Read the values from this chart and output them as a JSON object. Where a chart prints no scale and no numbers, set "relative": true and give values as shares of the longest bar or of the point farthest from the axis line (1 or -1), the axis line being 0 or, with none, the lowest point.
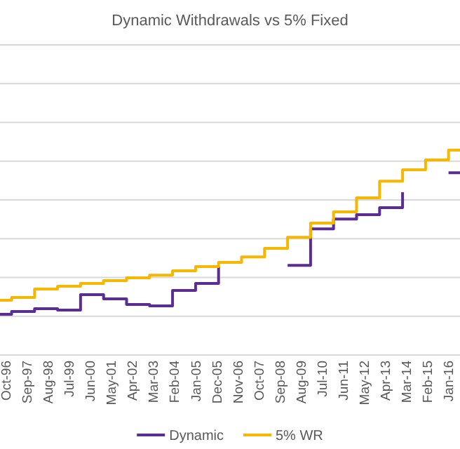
{
  "chart_data": {
    "type": "step",
    "title": "Dynamic Withdrawals vs 5% Fixed",
    "relative": true,
    "grid": "y",
    "legend": "bottom",
    "x": [
      "1996-07",
      "1997-01",
      "1998-01",
      "1999-01",
      "2000-01",
      "2001-01",
      "2002-01",
      "2003-01",
      "2004-01",
      "2005-01",
      "2006-01",
      "2007-01",
      "2008-01",
      "2009-01",
      "2010-01",
      "2011-01",
      "2012-01",
      "2013-01",
      "2014-01",
      "2015-01",
      "2016-01",
      "2016-07"
    ],
    "xlim": [
      "1996-07",
      "2016-07"
    ],
    "xticks": [
      {
        "value": "1996-10",
        "label": "Oct-96"
      },
      {
        "value": "1997-09",
        "label": "Sep-97"
      },
      {
        "value": "1998-08",
        "label": "Aug-98"
      },
      {
        "value": "1999-07",
        "label": "Jul-99"
      },
      {
        "value": "2000-06",
        "label": "Jun-00"
      },
      {
        "value": "2001-05",
        "label": "May-01"
      },
      {
        "value": "2002-04",
        "label": "Apr-02"
      },
      {
        "value": "2003-03",
        "label": "Mar-03"
      },
      {
        "value": "2004-02",
        "label": "Feb-04"
      },
      {
        "value": "2005-01",
        "label": "Jan-05"
      },
      {
        "value": "2005-12",
        "label": "Dec-05"
      },
      {
        "value": "2006-11",
        "label": "Nov-06"
      },
      {
        "value": "2007-10",
        "label": "Oct-07"
      },
      {
        "value": "2008-09",
        "label": "Sep-08"
      },
      {
        "value": "2009-08",
        "label": "Aug-09"
      },
      {
        "value": "2010-07",
        "label": "Jul-10"
      },
      {
        "value": "2011-06",
        "label": "Jun-11"
      },
      {
        "value": "2012-05",
        "label": "May-12"
      },
      {
        "value": "2013-04",
        "label": "Apr-13"
      },
      {
        "value": "2014-03",
        "label": "Mar-14"
      },
      {
        "value": "2015-02",
        "label": "Feb-15"
      },
      {
        "value": "2016-01",
        "label": "Jan-16"
      }
    ],
    "series": [
      {
        "name": "Dynamic",
        "color": "#5b2c91",
        "values": [
          0.199,
          0.212,
          0.226,
          0.219,
          0.295,
          0.274,
          0.247,
          0.24,
          0.315,
          0.349,
          0.432,
          null,
          null,
          0.438,
          0.616,
          0.664,
          0.685,
          0.719,
          0.795,
          null,
          0.89,
          0.89
        ]
      },
      {
        "name": "5% WR",
        "color": "#f5b700",
        "values": [
          0.267,
          0.281,
          0.322,
          0.336,
          0.349,
          0.363,
          0.377,
          0.39,
          0.411,
          0.432,
          0.452,
          0.479,
          0.521,
          0.575,
          0.644,
          0.699,
          0.767,
          0.849,
          0.904,
          0.952,
          1,
          1
        ]
      }
    ]
  }
}
